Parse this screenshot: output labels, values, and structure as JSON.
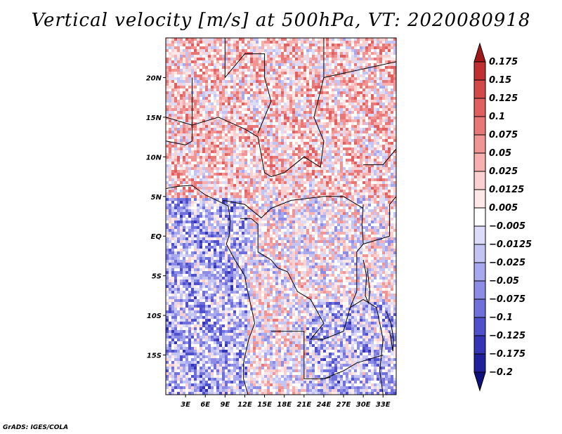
{
  "title": "Vertical velocity [m/s] at 500hPa, VT: 2020080918",
  "credit": "GrADS: IGES/COLA",
  "chart_data": {
    "type": "heatmap",
    "title": "Vertical velocity [m/s] at 500hPa, VT: 2020080918",
    "variable": "Vertical velocity",
    "units": "m/s",
    "level": "500hPa",
    "valid_time": "2020080918",
    "xlim": [
      0,
      35
    ],
    "ylim": [
      -20,
      25
    ],
    "x_ticks": [
      3,
      6,
      9,
      12,
      15,
      18,
      21,
      24,
      27,
      30,
      33
    ],
    "x_tick_labels": [
      "3E",
      "6E",
      "9E",
      "12E",
      "15E",
      "18E",
      "21E",
      "24E",
      "27E",
      "30E",
      "33E"
    ],
    "y_ticks": [
      20,
      15,
      10,
      5,
      0,
      -5,
      -10,
      -15
    ],
    "y_tick_labels": [
      "20N",
      "15N",
      "10N",
      "5N",
      "EQ",
      "5S",
      "10S",
      "15S"
    ],
    "colorbar": {
      "levels": [
        "0.175",
        "0.15",
        "0.125",
        "0.1",
        "0.075",
        "0.05",
        "0.025",
        "0.0125",
        "0.005",
        "−0.005",
        "−0.0125",
        "−0.025",
        "−0.05",
        "−0.075",
        "−0.1",
        "−0.125",
        "−0.175",
        "−0.2"
      ],
      "colors": [
        "#a01818",
        "#c03030",
        "#d44848",
        "#e06060",
        "#e87878",
        "#f09494",
        "#f6b0b0",
        "#fad0d0",
        "#fde8e8",
        "#ffffff",
        "#dcdcfa",
        "#c4c4f4",
        "#a8a8ee",
        "#8c8ce6",
        "#7070dc",
        "#5050cc",
        "#3434b4",
        "#20209c",
        "#10107c"
      ]
    }
  }
}
